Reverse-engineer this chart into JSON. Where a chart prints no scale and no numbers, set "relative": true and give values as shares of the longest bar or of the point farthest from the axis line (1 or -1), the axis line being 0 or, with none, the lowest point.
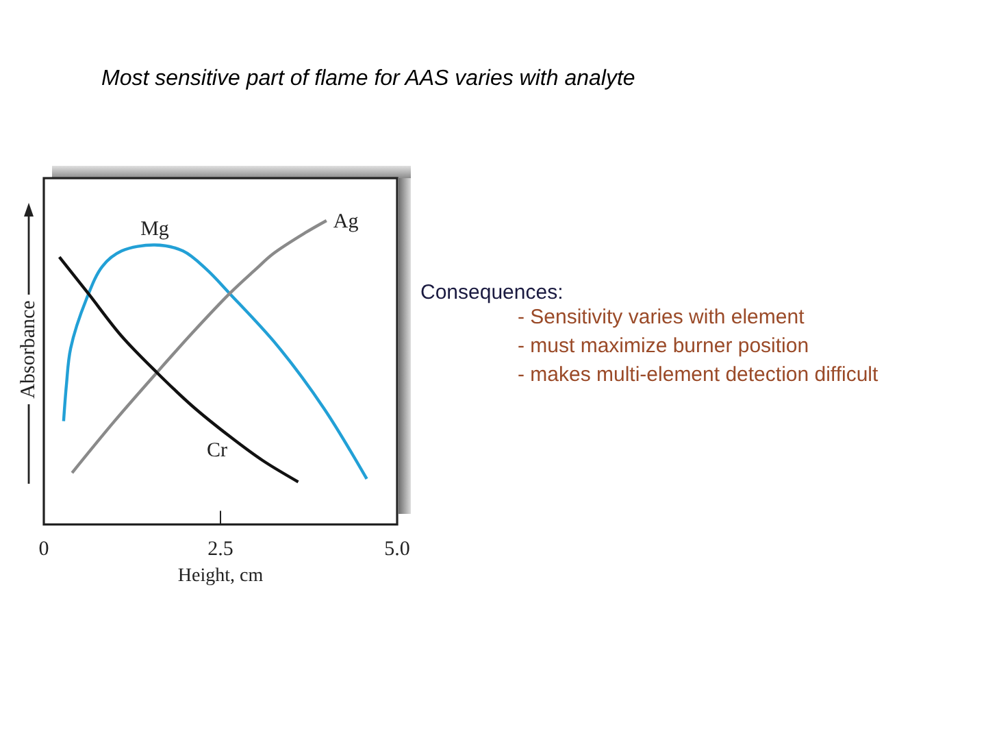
{
  "chart_data": {
    "type": "line",
    "title": "Most sensitive part of flame for AAS varies with analyte",
    "xlabel": "Height, cm",
    "ylabel": "Absorbance",
    "relative": true,
    "xlim": [
      0,
      5
    ],
    "xticks": [
      0,
      2.5,
      {
        "value": 5,
        "label": "5.0"
      }
    ],
    "series": [
      {
        "name": "Mg",
        "color": "#22a0d6",
        "x": [
          0.28,
          0.32,
          0.38,
          0.6,
          0.83,
          1.1,
          1.57,
          1.97,
          2.3,
          2.63,
          3.3,
          3.97,
          4.57
        ],
        "values": [
          0.34,
          0.46,
          0.58,
          0.74,
          0.85,
          0.9,
          0.92,
          0.9,
          0.84,
          0.76,
          0.59,
          0.38,
          0.15
        ]
      },
      {
        "name": "Ag",
        "color": "#8a8a8a",
        "x": [
          0.4,
          1,
          1.6,
          2.1,
          2.63,
          3,
          3.24,
          3.7,
          4
        ],
        "values": [
          0.17,
          0.34,
          0.5,
          0.63,
          0.76,
          0.84,
          0.89,
          0.96,
          1
        ]
      },
      {
        "name": "Cr",
        "color": "#111111",
        "x": [
          0.22,
          0.63,
          1.1,
          1.6,
          2.1,
          2.63,
          3.1,
          3.6
        ],
        "values": [
          0.88,
          0.76,
          0.62,
          0.5,
          0.39,
          0.29,
          0.21,
          0.14
        ]
      }
    ],
    "annotations": [
      "Consequences:",
      "- Sensitivity varies with element",
      "- must maximize burner position",
      "- makes multi-element detection difficult"
    ]
  }
}
